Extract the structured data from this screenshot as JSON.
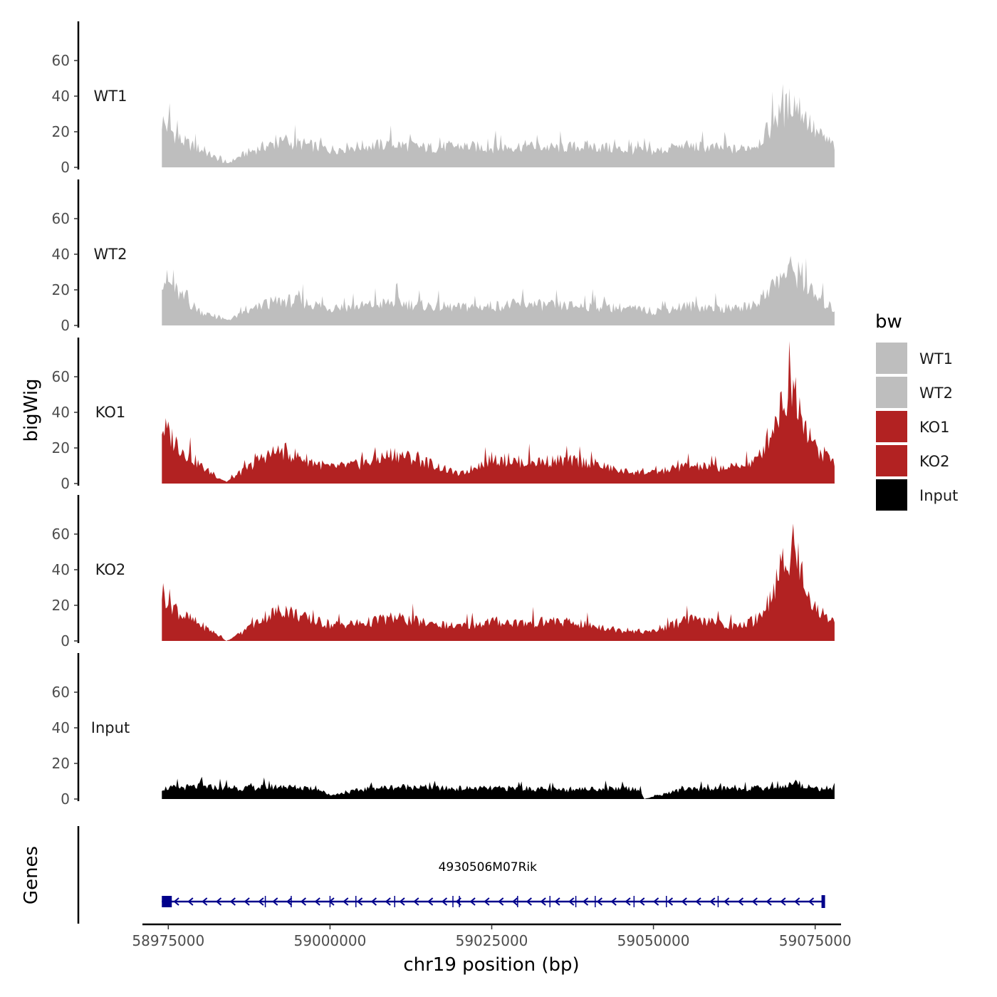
{
  "chart_data": {
    "type": "area",
    "chromosome": "chr19",
    "xlabel": "chr19 position (bp)",
    "ylabel": "bigWig",
    "genes_label": "Genes",
    "xlim": [
      58971000,
      59079000
    ],
    "ylim": [
      0,
      80
    ],
    "region": [
      58974000,
      59078000
    ],
    "y_ticks": [
      0,
      20,
      40,
      60
    ],
    "x_ticks": [
      58975000,
      59000000,
      59025000,
      59050000,
      59075000
    ],
    "x_tick_labels": [
      "58975000",
      "59000000",
      "59025000",
      "59050000",
      "59075000"
    ],
    "legend": {
      "title": "bw",
      "entries": [
        {
          "label": "WT1",
          "color": "#bebebe"
        },
        {
          "label": "WT2",
          "color": "#bebebe"
        },
        {
          "label": "KO1",
          "color": "#b22222"
        },
        {
          "label": "KO2",
          "color": "#b22222"
        },
        {
          "label": "Input",
          "color": "#000000"
        }
      ]
    },
    "series": [
      {
        "name": "WT1",
        "color": "#bebebe",
        "x": [
          58974000,
          58977000,
          58980000,
          58982000,
          58984000,
          58987000,
          58990000,
          58993000,
          58996000,
          59000000,
          59005000,
          59010000,
          59015000,
          59020000,
          59025000,
          59030000,
          59035000,
          59040000,
          59045000,
          59050000,
          59055000,
          59060000,
          59063000,
          59066000,
          59068000,
          59070000,
          59071500,
          59073000,
          59075000,
          59078000
        ],
        "values": [
          26,
          15,
          10,
          6,
          2,
          8,
          12,
          14,
          13,
          10,
          12,
          13,
          11,
          12,
          11,
          12,
          11,
          12,
          10,
          9,
          12,
          11,
          10,
          13,
          22,
          30,
          38,
          32,
          20,
          12
        ]
      },
      {
        "name": "WT2",
        "color": "#bebebe",
        "x": [
          58974000,
          58977000,
          58980000,
          58982000,
          58984000,
          58987000,
          58990000,
          58993000,
          58996000,
          59000000,
          59005000,
          59010000,
          59015000,
          59020000,
          59025000,
          59030000,
          59035000,
          59040000,
          59045000,
          59050000,
          59055000,
          59060000,
          59063000,
          59066000,
          59068000,
          59070000,
          59071500,
          59073000,
          59075000,
          59078000
        ],
        "values": [
          28,
          16,
          8,
          5,
          3,
          7,
          12,
          14,
          13,
          10,
          11,
          13,
          11,
          10,
          11,
          12,
          11,
          11,
          10,
          8,
          11,
          10,
          9,
          13,
          20,
          28,
          32,
          26,
          16,
          9
        ]
      },
      {
        "name": "KO1",
        "color": "#b22222",
        "x": [
          58974000,
          58977000,
          58980000,
          58982000,
          58984000,
          58987000,
          58990000,
          58993000,
          58996000,
          59000000,
          59005000,
          59010000,
          59015000,
          59020000,
          59025000,
          59030000,
          59035000,
          59040000,
          59045000,
          59050000,
          59055000,
          59060000,
          59063000,
          59066000,
          59068000,
          59070000,
          59071500,
          59073000,
          59075000,
          59078000
        ],
        "values": [
          32,
          20,
          10,
          5,
          1,
          8,
          16,
          18,
          14,
          9,
          11,
          17,
          12,
          5,
          14,
          12,
          13,
          12,
          7,
          6,
          10,
          9,
          9,
          13,
          28,
          45,
          58,
          40,
          20,
          12
        ]
      },
      {
        "name": "KO2",
        "color": "#b22222",
        "x": [
          58974000,
          58977000,
          58980000,
          58982000,
          58984000,
          58987000,
          58990000,
          58993000,
          58996000,
          59000000,
          59005000,
          59010000,
          59015000,
          59020000,
          59025000,
          59030000,
          59035000,
          59040000,
          59045000,
          59050000,
          59055000,
          59060000,
          59063000,
          59066000,
          59068000,
          59070000,
          59071500,
          59073000,
          59075000,
          59078000
        ],
        "values": [
          28,
          15,
          9,
          5,
          0,
          6,
          14,
          18,
          13,
          9,
          10,
          13,
          10,
          8,
          11,
          10,
          11,
          9,
          6,
          5,
          12,
          10,
          8,
          12,
          24,
          42,
          56,
          38,
          18,
          11
        ]
      },
      {
        "name": "Input",
        "color": "#000000",
        "x": [
          58974000,
          58980000,
          58986000,
          58992000,
          58998000,
          59000000,
          59006000,
          59012000,
          59018000,
          59024000,
          59030000,
          59036000,
          59042000,
          59048000,
          59048500,
          59054000,
          59060000,
          59066000,
          59070000,
          59072000,
          59075000,
          59078000
        ],
        "values": [
          6,
          7,
          6,
          7,
          6,
          2,
          6,
          7,
          6,
          6,
          6,
          5,
          6,
          6,
          0,
          5,
          6,
          6,
          7,
          9,
          6,
          6
        ]
      }
    ],
    "gene": {
      "name": "4930506M07Rik",
      "start": 58974000,
      "end": 59076500,
      "strand": "-",
      "color": "#00008b",
      "exons": [
        58974000,
        58990000,
        58994000,
        59000000,
        59004000,
        59010000,
        59019000,
        59020000,
        59029000,
        59034000,
        59038000,
        59041000,
        59047000,
        59052000,
        59060000,
        59076200
      ]
    }
  }
}
